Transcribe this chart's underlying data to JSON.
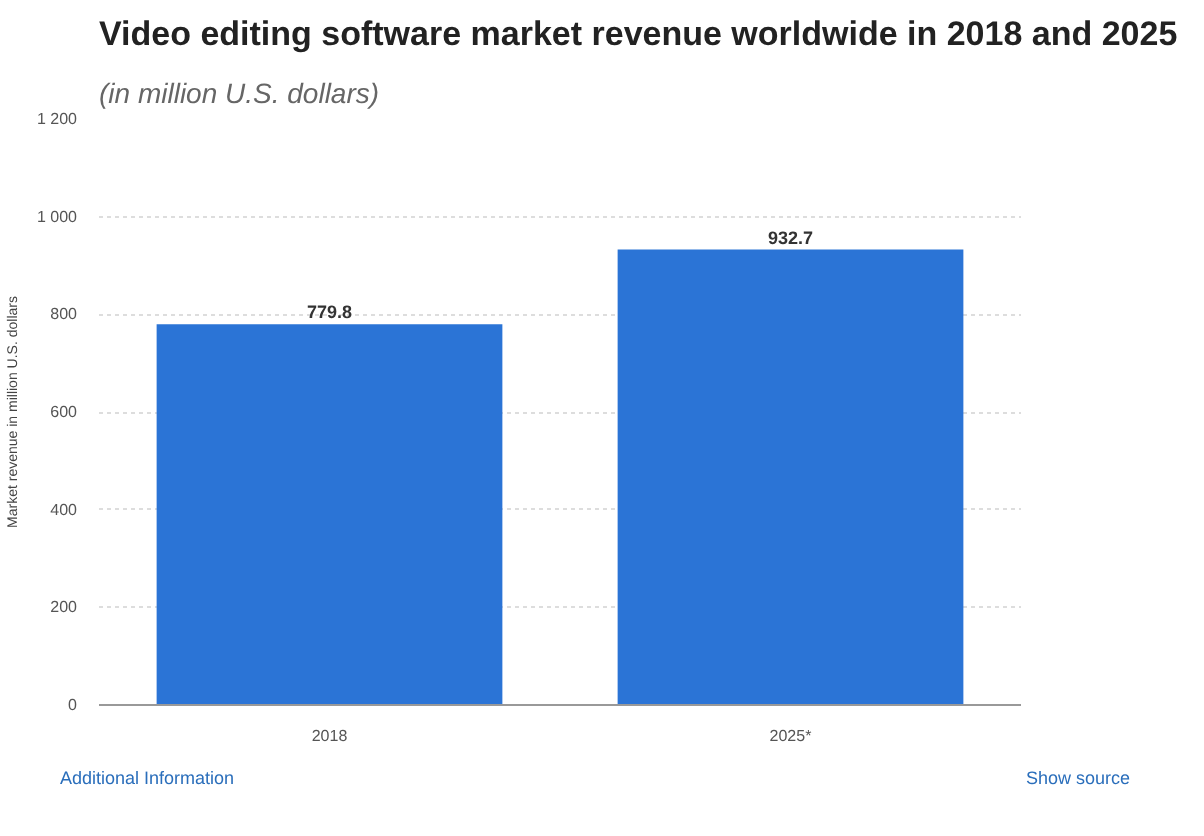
{
  "chart_data": {
    "type": "bar",
    "title": "Video editing software market revenue worldwide in 2018 and 2025",
    "subtitle": "(in million U.S. dollars)",
    "ylabel": "Market revenue in million U.S. dollars",
    "categories": [
      "2018",
      "2025*"
    ],
    "values": [
      779.8,
      932.7
    ],
    "color": "#2b74d6",
    "ylim": [
      0,
      1200
    ],
    "yticks": [
      0,
      200,
      400,
      600,
      800,
      {
        "value": 1000,
        "label": "1 000"
      },
      {
        "value": 1200,
        "label": "1 200"
      }
    ],
    "grid": "y",
    "data_labels": true,
    "annotations": [
      "Additional Information",
      "Show source"
    ]
  }
}
